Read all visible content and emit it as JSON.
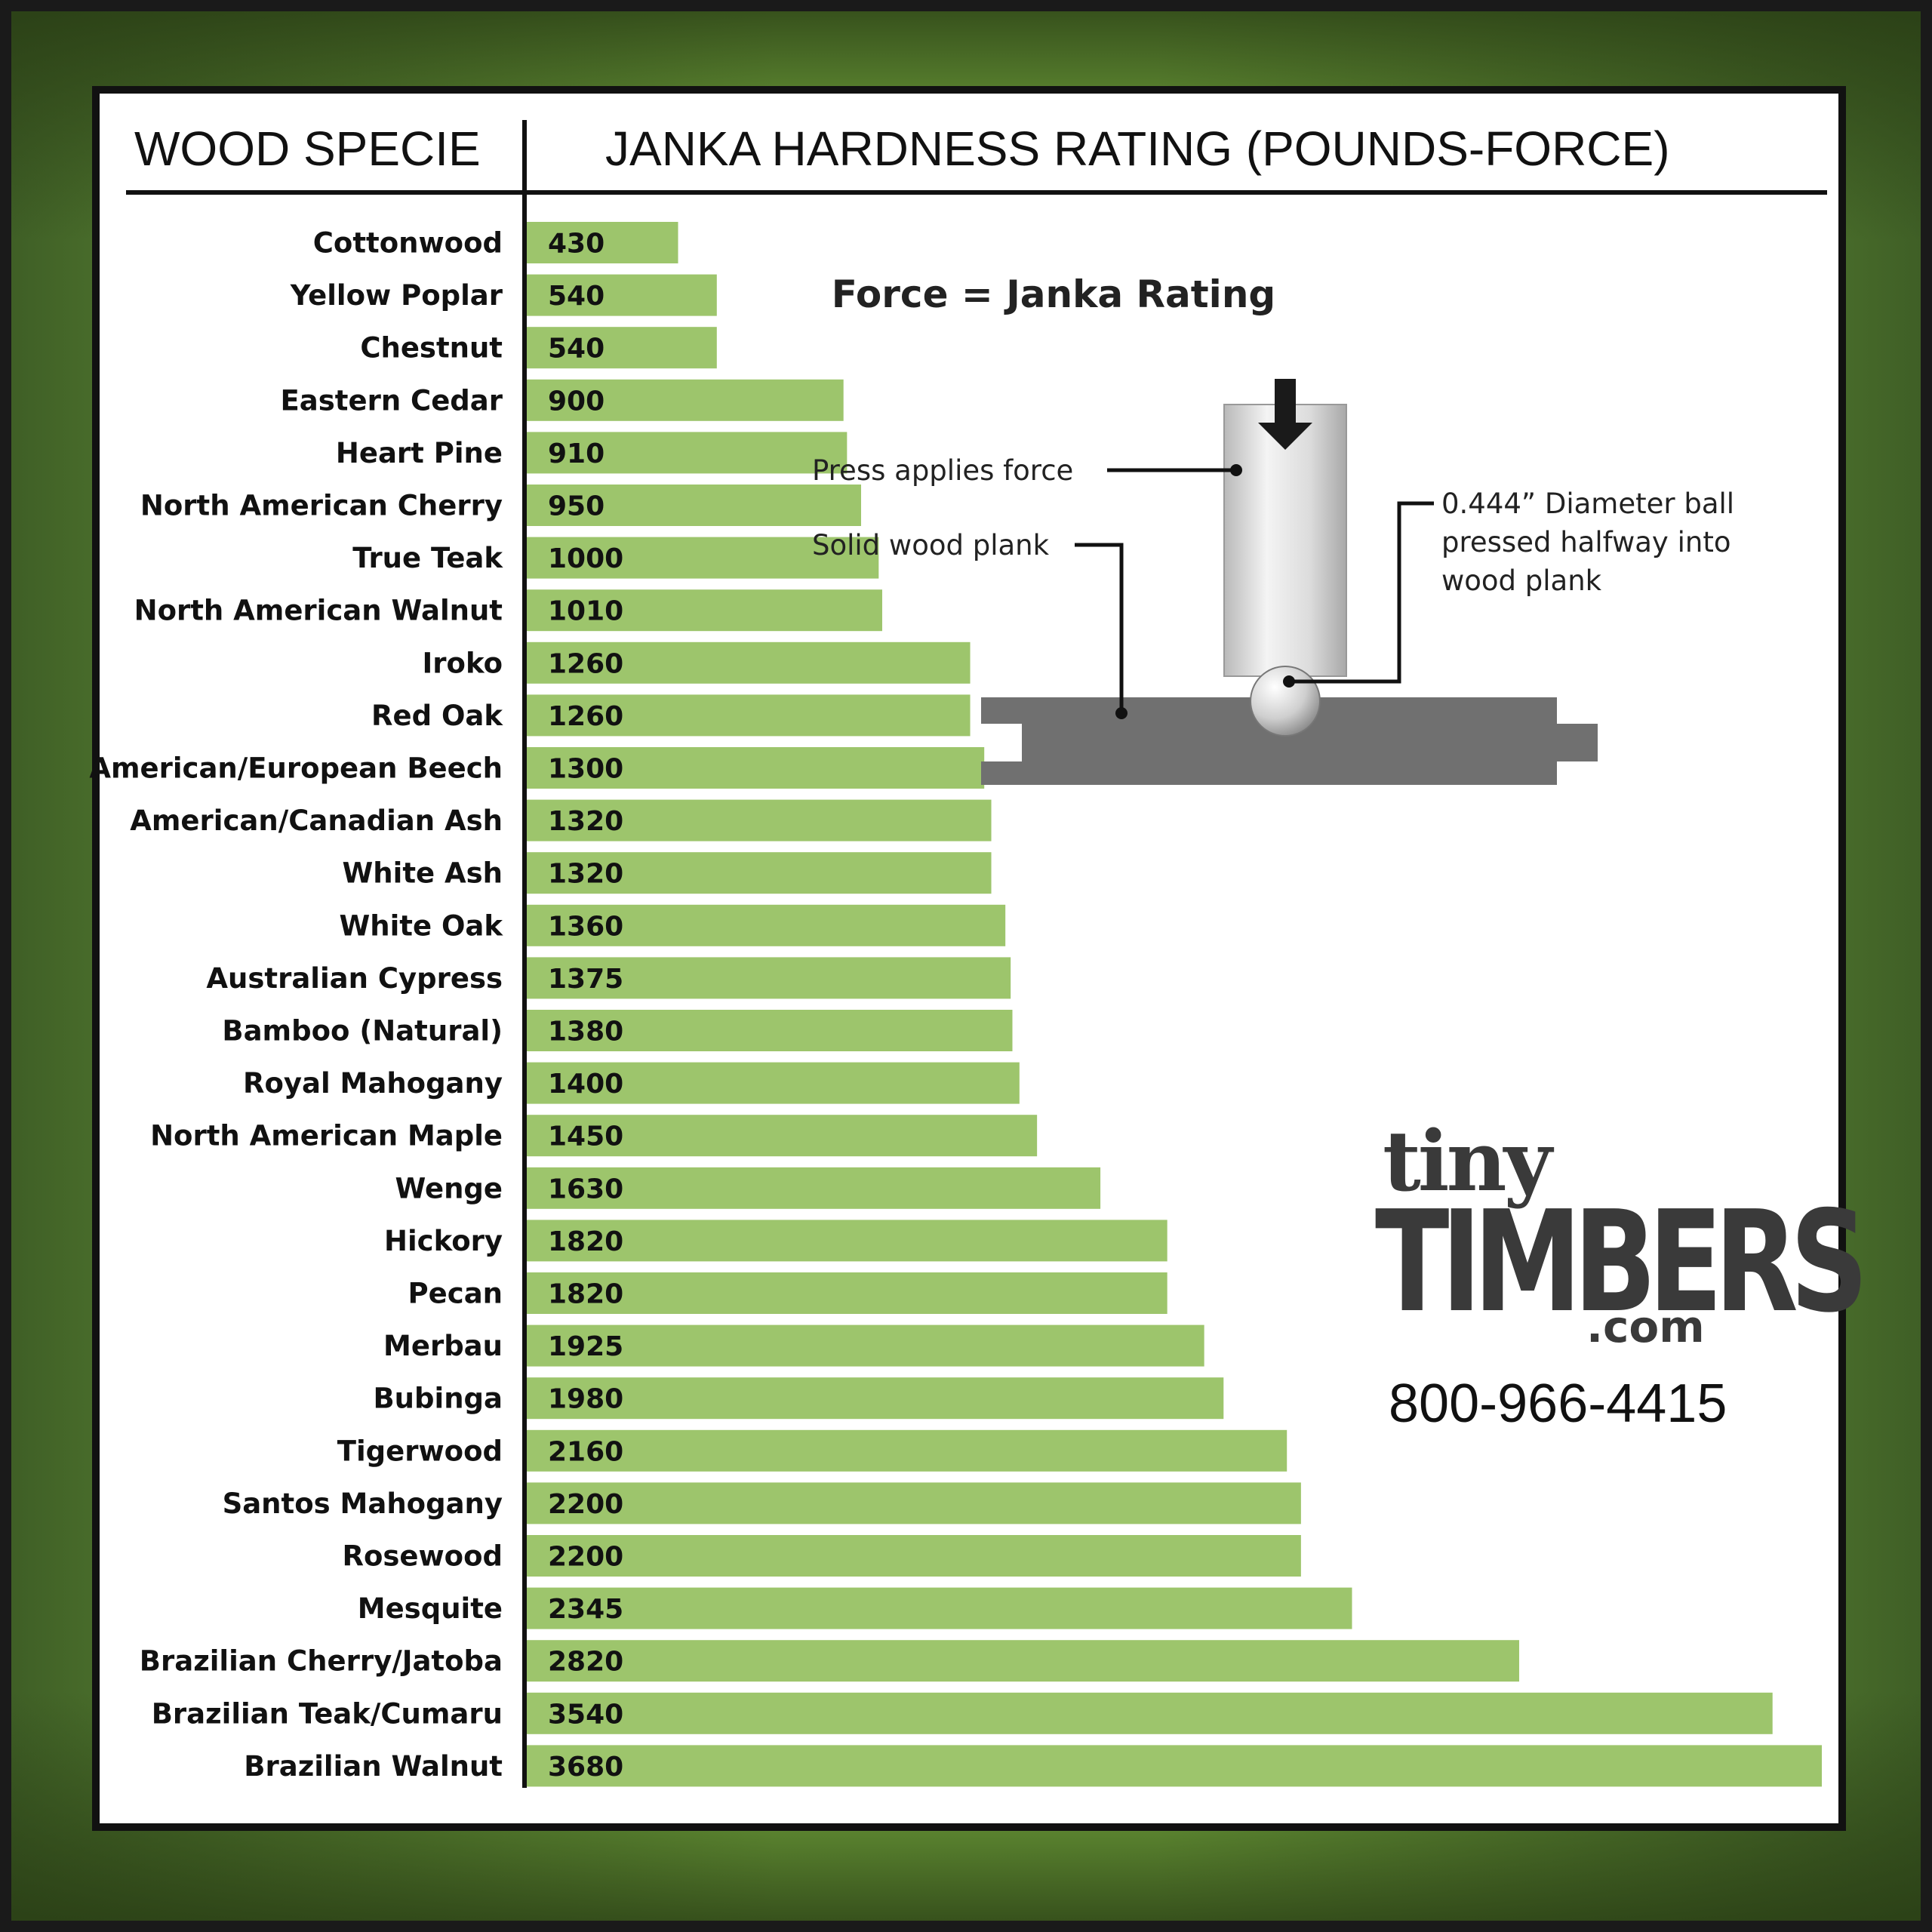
{
  "header": {
    "left": "WOOD SPECIE",
    "right": "JANKA HARDNESS RATING (POUNDS-FORCE)"
  },
  "chart_data": {
    "type": "bar",
    "orientation": "horizontal",
    "categories": [
      "Cottonwood",
      "Yellow Poplar",
      "Chestnut",
      "Eastern Cedar",
      "Heart Pine",
      "North American Cherry",
      "True Teak",
      "North American Walnut",
      "Iroko",
      "Red Oak",
      "American/European Beech",
      "American/Canadian Ash",
      "White Ash",
      "White Oak",
      "Australian Cypress",
      "Bamboo (Natural)",
      "Royal Mahogany",
      "North American Maple",
      "Wenge",
      "Hickory",
      "Pecan",
      "Merbau",
      "Bubinga",
      "Tigerwood",
      "Santos Mahogany",
      "Rosewood",
      "Mesquite",
      "Brazilian Cherry/Jatoba",
      "Brazilian Teak/Cumaru",
      "Brazilian Walnut"
    ],
    "values": [
      430,
      540,
      540,
      900,
      910,
      950,
      1000,
      1010,
      1260,
      1260,
      1300,
      1320,
      1320,
      1360,
      1375,
      1380,
      1400,
      1450,
      1630,
      1820,
      1820,
      1925,
      1980,
      2160,
      2200,
      2200,
      2345,
      2820,
      3540,
      3680
    ],
    "xlim": [
      0,
      3680
    ],
    "grid": false,
    "bar_color": "#9dc56c"
  },
  "diagram": {
    "title": "Force = Janka Rating",
    "press_label": "Press applies force",
    "plank_label": "Solid wood plank",
    "ball_label_lines": [
      "0.444” Diameter ball",
      "pressed halfway into",
      "wood plank"
    ]
  },
  "logo": {
    "tiny": "tiny",
    "timbers": "TIMBERS",
    "com": ".com"
  },
  "phone": "800-966-4415",
  "colors": {
    "frame_green": "#8fce4c",
    "frame_dark": "#3f5f26",
    "plank": "#707070"
  }
}
